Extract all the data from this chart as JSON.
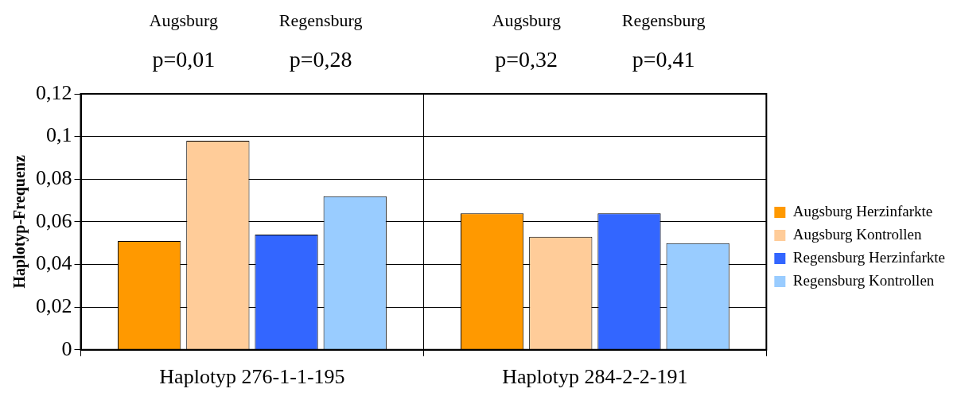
{
  "chart_data": {
    "type": "bar",
    "ylabel": "Haplotyp-Frequenz",
    "categories": [
      "Haplotyp 276-1-1-195",
      "Haplotyp 284-2-2-191"
    ],
    "series": [
      {
        "name": "Augsburg Herzinfarkte",
        "color": "#ff9900",
        "values": [
          0.051,
          0.064
        ]
      },
      {
        "name": "Augsburg Kontrollen",
        "color": "#ffcc99",
        "values": [
          0.098,
          0.053
        ]
      },
      {
        "name": "Regensburg Herzinfarkte",
        "color": "#3366ff",
        "values": [
          0.054,
          0.064
        ]
      },
      {
        "name": "Regensburg Kontrollen",
        "color": "#99ccff",
        "values": [
          0.072,
          0.05
        ]
      }
    ],
    "ylim": [
      0,
      0.12
    ],
    "yticks": [
      {
        "value": 0,
        "label": "0"
      },
      {
        "value": 0.02,
        "label": "0,02"
      },
      {
        "value": 0.04,
        "label": "0,04"
      },
      {
        "value": 0.06,
        "label": "0,06"
      },
      {
        "value": 0.08,
        "label": "0,08"
      },
      {
        "value": 0.1,
        "label": "0,1"
      },
      {
        "value": 0.12,
        "label": "0,12"
      }
    ],
    "grid": true,
    "legend": "right",
    "annotations": [
      "Augsburg",
      "Regensburg",
      "Augsburg",
      "Regensburg",
      "p=0,01",
      "p=0,28",
      "p=0,32",
      "p=0,41"
    ]
  }
}
